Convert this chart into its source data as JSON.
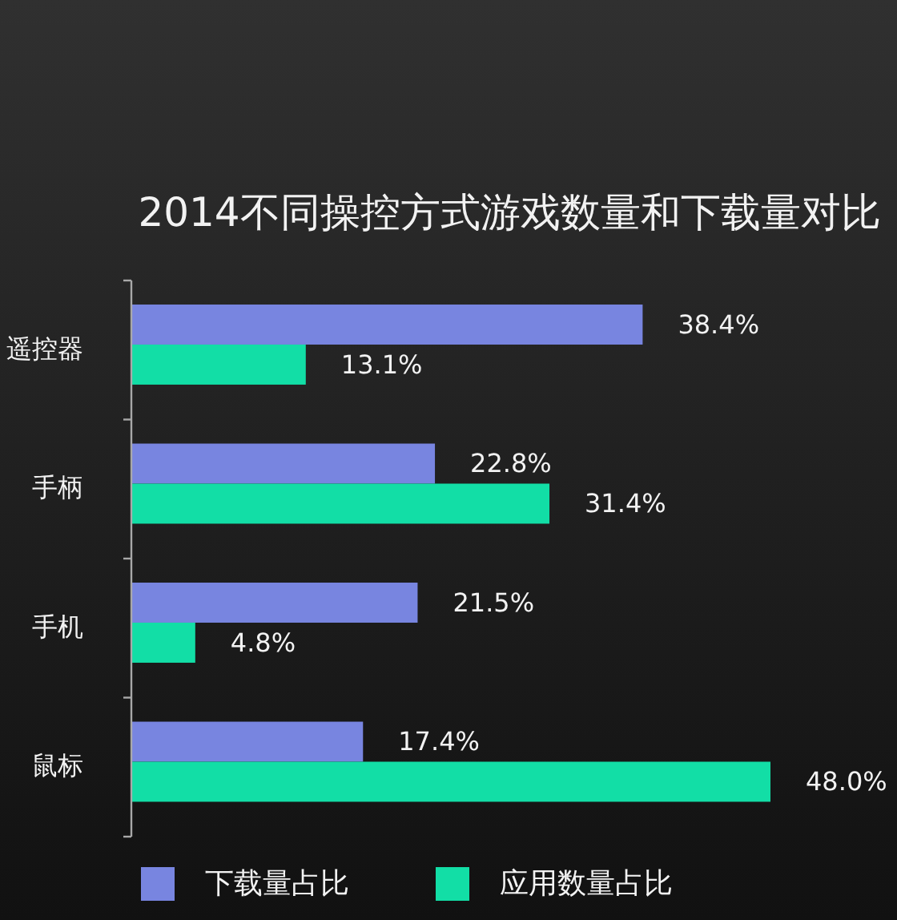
{
  "chart_data": {
    "type": "bar",
    "orientation": "horizontal",
    "title": "2014不同操控方式游戏数量和下载量对比",
    "categories": [
      "遥控器",
      "手柄",
      "手机",
      "鼠标"
    ],
    "series": [
      {
        "name": "下载量占比",
        "color": "#7885e0",
        "values": [
          38.4,
          22.8,
          21.5,
          17.4
        ],
        "value_labels": [
          "38.4%",
          "22.8%",
          "21.5%",
          "17.4%"
        ]
      },
      {
        "name": "应用数量占比",
        "color": "#12dea6",
        "values": [
          13.1,
          31.4,
          4.8,
          48.0
        ],
        "value_labels": [
          "13.1%",
          "31.4%",
          "4.8%",
          "48.0%"
        ]
      }
    ],
    "legend": "bottom"
  }
}
